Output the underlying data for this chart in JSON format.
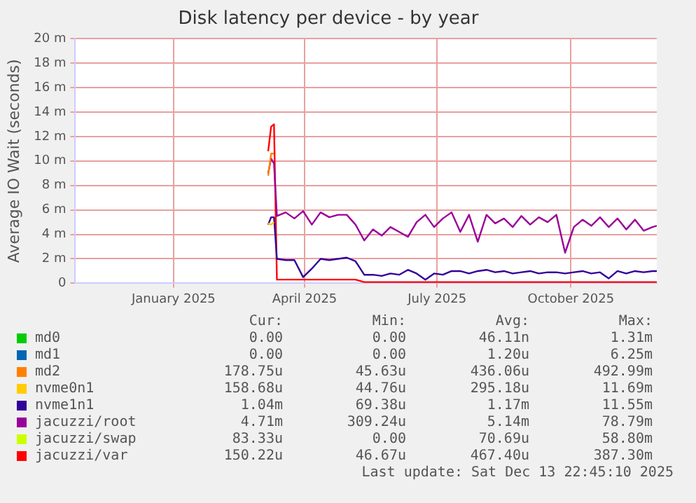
{
  "chart_data": {
    "type": "line",
    "title": "Disk latency per device - by year",
    "ylabel": "Average IO Wait (seconds)",
    "x": [
      "2025-03-21",
      "2025-03-23",
      "2025-03-25",
      "2025-03-27",
      "2025-04-02",
      "2025-04-08",
      "2025-04-14",
      "2025-04-20",
      "2025-04-26",
      "2025-05-02",
      "2025-05-08",
      "2025-05-14",
      "2025-05-20",
      "2025-05-26",
      "2025-06-01",
      "2025-06-07",
      "2025-06-13",
      "2025-06-19",
      "2025-06-25",
      "2025-07-01",
      "2025-07-07",
      "2025-07-13",
      "2025-07-19",
      "2025-07-25",
      "2025-07-31",
      "2025-08-06",
      "2025-08-12",
      "2025-08-18",
      "2025-08-24",
      "2025-08-30",
      "2025-09-05",
      "2025-09-11",
      "2025-09-17",
      "2025-09-23",
      "2025-09-29",
      "2025-10-05",
      "2025-10-11",
      "2025-10-17",
      "2025-10-23",
      "2025-10-29",
      "2025-11-04",
      "2025-11-10",
      "2025-11-16",
      "2025-11-22",
      "2025-11-28",
      "2025-12-04",
      "2025-12-10",
      "2025-12-13"
    ],
    "xlim": [
      "2024-11-08",
      "2025-12-13"
    ],
    "xticks": [
      {
        "value": "2025-01-15",
        "label": "January 2025"
      },
      {
        "value": "2025-04-15",
        "label": "April 2025"
      },
      {
        "value": "2025-07-15",
        "label": "July 2025"
      },
      {
        "value": "2025-10-15",
        "label": "October 2025"
      }
    ],
    "ylim": [
      0,
      20
    ],
    "yticks": [
      0,
      {
        "value": 2,
        "label": "2 m"
      },
      {
        "value": 4,
        "label": "4 m"
      },
      {
        "value": 6,
        "label": "6 m"
      },
      {
        "value": 8,
        "label": "8 m"
      },
      {
        "value": 10,
        "label": "10 m"
      },
      {
        "value": 12,
        "label": "12 m"
      },
      {
        "value": 14,
        "label": "14 m"
      },
      {
        "value": 16,
        "label": "16 m"
      },
      {
        "value": 18,
        "label": "18 m"
      },
      {
        "value": 20,
        "label": "20 m"
      }
    ],
    "grid": true,
    "legend": "bottom",
    "marker": "none",
    "series": [
      {
        "name": "md0",
        "color": "#00cc00",
        "values": [
          null,
          null,
          null,
          null,
          null,
          null,
          null,
          null,
          null,
          null,
          null,
          null,
          null,
          null,
          null,
          null,
          null,
          null,
          null,
          null,
          null,
          null,
          null,
          null,
          null,
          null,
          null,
          null,
          null,
          null,
          null,
          null,
          null,
          null,
          null,
          null,
          null,
          null,
          null,
          null,
          null,
          null,
          null,
          null,
          null,
          null,
          null,
          null
        ]
      },
      {
        "name": "md1",
        "color": "#0066b3",
        "values": [
          null,
          null,
          null,
          null,
          null,
          null,
          null,
          null,
          null,
          null,
          null,
          null,
          null,
          null,
          null,
          null,
          null,
          null,
          null,
          null,
          null,
          null,
          null,
          null,
          null,
          null,
          null,
          null,
          null,
          null,
          null,
          null,
          null,
          null,
          null,
          null,
          null,
          null,
          null,
          null,
          null,
          null,
          null,
          null,
          null,
          null,
          null,
          null
        ]
      },
      {
        "name": "md2",
        "color": "#ff8000",
        "values": [
          8.8,
          10.6,
          10.6,
          null,
          null,
          null,
          null,
          null,
          null,
          null,
          null,
          null,
          null,
          null,
          null,
          null,
          null,
          null,
          null,
          null,
          null,
          null,
          null,
          null,
          null,
          null,
          null,
          null,
          null,
          null,
          null,
          null,
          null,
          null,
          null,
          null,
          null,
          null,
          null,
          null,
          null,
          null,
          null,
          null,
          null,
          null,
          null,
          null
        ]
      },
      {
        "name": "nvme0n1",
        "color": "#ffcc00",
        "values": [
          4.9,
          4.8,
          5.0,
          null,
          null,
          null,
          null,
          null,
          null,
          null,
          null,
          null,
          null,
          null,
          null,
          null,
          null,
          null,
          null,
          null,
          null,
          null,
          null,
          null,
          null,
          null,
          null,
          null,
          null,
          null,
          null,
          null,
          null,
          null,
          null,
          null,
          null,
          null,
          null,
          null,
          null,
          null,
          null,
          null,
          null,
          null,
          null,
          null
        ]
      },
      {
        "name": "nvme1n1",
        "color": "#330099",
        "values": [
          4.8,
          5.4,
          5.4,
          2.0,
          1.9,
          1.9,
          0.5,
          1.2,
          2.0,
          1.9,
          2.0,
          2.1,
          1.8,
          0.7,
          0.7,
          0.6,
          0.8,
          0.7,
          1.1,
          0.8,
          0.3,
          0.8,
          0.7,
          1.0,
          1.0,
          0.8,
          1.0,
          1.1,
          0.9,
          1.0,
          0.8,
          0.9,
          1.0,
          0.8,
          0.9,
          0.9,
          0.8,
          0.9,
          1.0,
          0.8,
          0.9,
          0.4,
          1.0,
          0.8,
          1.0,
          0.9,
          1.0,
          1.0
        ]
      },
      {
        "name": "jacuzzi/root",
        "color": "#990099",
        "values": [
          9.0,
          10.2,
          9.8,
          5.5,
          5.8,
          5.3,
          5.9,
          4.8,
          5.8,
          5.4,
          5.6,
          5.6,
          4.8,
          3.5,
          4.4,
          3.9,
          4.6,
          4.2,
          3.8,
          5.0,
          5.6,
          4.6,
          5.3,
          5.8,
          4.2,
          5.6,
          3.4,
          5.6,
          4.9,
          5.3,
          4.6,
          5.5,
          4.8,
          5.4,
          5.0,
          5.6,
          2.5,
          4.6,
          5.2,
          4.7,
          5.4,
          4.6,
          5.3,
          4.4,
          5.2,
          4.3,
          4.6,
          4.7
        ]
      },
      {
        "name": "jacuzzi/swap",
        "color": "#ccff00",
        "values": [
          null,
          null,
          null,
          null,
          null,
          null,
          null,
          null,
          null,
          null,
          null,
          null,
          null,
          null,
          null,
          null,
          null,
          null,
          null,
          null,
          null,
          null,
          null,
          null,
          null,
          null,
          null,
          null,
          null,
          null,
          null,
          null,
          null,
          null,
          null,
          null,
          null,
          null,
          null,
          null,
          null,
          null,
          null,
          null,
          null,
          null,
          null,
          null
        ]
      },
      {
        "name": "jacuzzi/var",
        "color": "#ff0000",
        "values": [
          10.8,
          12.8,
          13.0,
          0.3,
          0.3,
          0.3,
          0.3,
          0.3,
          0.3,
          0.3,
          0.3,
          0.3,
          0.3,
          0.1,
          0.1,
          0.1,
          0.1,
          0.1,
          0.1,
          0.1,
          0.1,
          0.1,
          0.1,
          0.1,
          0.1,
          0.1,
          0.1,
          0.1,
          0.1,
          0.1,
          0.1,
          0.1,
          0.1,
          0.1,
          0.1,
          0.1,
          0.1,
          0.1,
          0.1,
          0.1,
          0.1,
          0.1,
          0.1,
          0.1,
          0.1,
          0.1,
          0.1,
          0.1
        ]
      }
    ],
    "annotations": [
      "Cur:",
      "Min:",
      "Avg:",
      "Max:",
      "0.00",
      "0.00",
      "46.11n",
      "1.31m",
      "0.00",
      "0.00",
      "1.20u",
      "6.25m",
      "178.75u",
      "45.63u",
      "436.06u",
      "492.99m",
      "158.68u",
      "44.76u",
      "295.18u",
      "11.69m",
      "1.04m",
      "69.38u",
      "1.17m",
      "11.55m",
      "4.71m",
      "309.24u",
      "5.14m",
      "78.79m",
      "83.33u",
      "0.00",
      "70.69u",
      "58.80m",
      "150.22u",
      "46.67u",
      "467.40u",
      "387.30m",
      "Last update: Sat Dec 13 22:45:10 2025"
    ]
  }
}
